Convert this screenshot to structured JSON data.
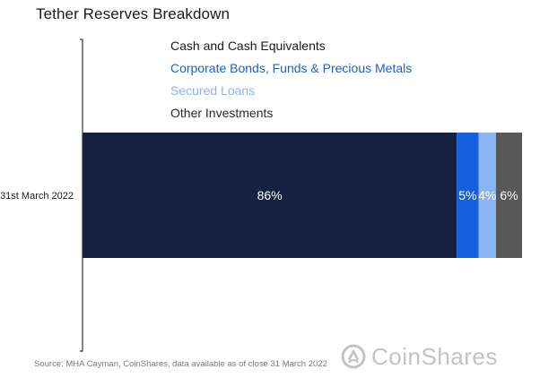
{
  "title": "Tether Reserves Breakdown",
  "source": "Source: MHA Cayman, CoinShares, data available as of close 31 March 2022",
  "logo": {
    "text": "CoinShares",
    "icon": "coinshares-logo-icon"
  },
  "colors": {
    "cash": "#14213f",
    "bonds": "#1460e0",
    "loans": "#8ab4f2",
    "other": "#585858",
    "axis": "#333333"
  },
  "chart_data": {
    "type": "bar",
    "orientation": "horizontal",
    "stacked": true,
    "normalized": "percent",
    "categories": [
      "31st March 2022"
    ],
    "series": [
      {
        "name": "Cash and Cash Equivalents",
        "values": [
          86
        ],
        "label": "86%",
        "color": "#14213f",
        "legend_color": "#1a1a1a"
      },
      {
        "name": "Corporate Bonds, Funds & Precious Metals",
        "values": [
          5
        ],
        "label": "5%",
        "color": "#1460e0",
        "legend_color": "#1c5fc9"
      },
      {
        "name": "Secured Loans",
        "values": [
          4
        ],
        "label": "4%",
        "color": "#8ab4f2",
        "legend_color": "#8ab4f2"
      },
      {
        "name": "Other Investments",
        "values": [
          6
        ],
        "label": "6%",
        "color": "#585858",
        "legend_color": "#2a2a2a"
      }
    ],
    "xlim": [
      0,
      101
    ],
    "grid": false,
    "legend": "top"
  }
}
